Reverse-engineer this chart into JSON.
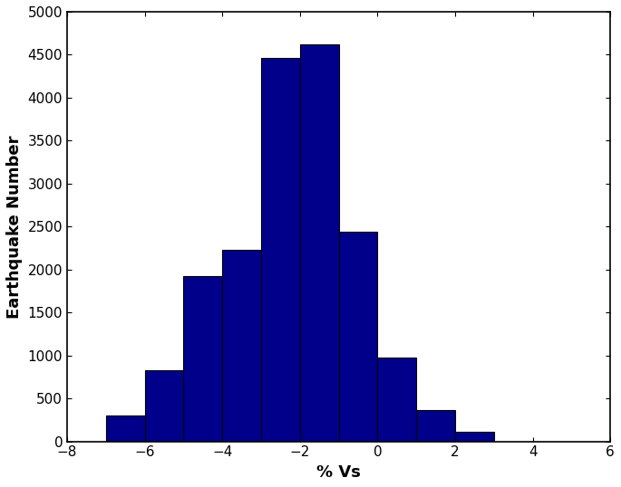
{
  "bin_edges": [
    -7,
    -6,
    -5,
    -4,
    -3,
    -2,
    -1,
    0,
    1,
    2,
    3,
    4,
    5
  ],
  "bar_heights": [
    300,
    830,
    1920,
    2230,
    4460,
    4620,
    2440,
    980,
    360,
    110,
    0,
    0
  ],
  "bar_color": "#00008B",
  "bar_edgecolor": "#000000",
  "title": "",
  "xlabel": "% Vs",
  "ylabel": "Earthquake Number",
  "xlim": [
    -8,
    6
  ],
  "ylim": [
    0,
    5000
  ],
  "xticks": [
    -8,
    -6,
    -4,
    -2,
    0,
    2,
    4,
    6
  ],
  "yticks": [
    0,
    500,
    1000,
    1500,
    2000,
    2500,
    3000,
    3500,
    4000,
    4500,
    5000
  ],
  "xlabel_fontsize": 13,
  "ylabel_fontsize": 13,
  "tick_fontsize": 11,
  "bar_linewidth": 0.8,
  "background_color": "#ffffff"
}
